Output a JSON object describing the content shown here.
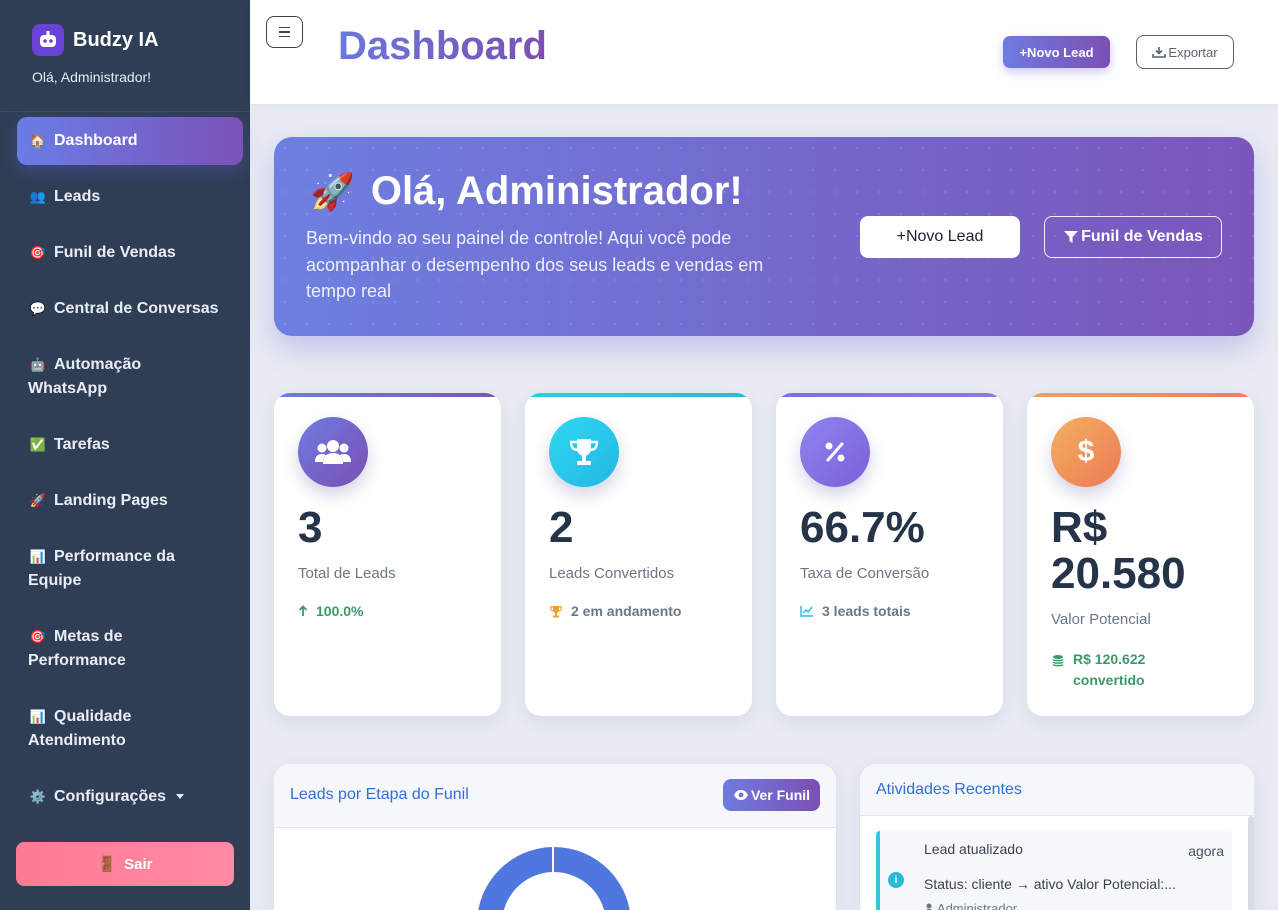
{
  "sidebar": {
    "brand": "Budzy IA",
    "greeting": "Olá, Administrador!",
    "items": [
      {
        "icon": "🏠",
        "label": "Dashboard",
        "active": true
      },
      {
        "icon": "👥",
        "label": "Leads"
      },
      {
        "icon": "🎯",
        "label": "Funil de Vendas"
      },
      {
        "icon": "💬",
        "label": "Central de Conversas"
      },
      {
        "icon": "🤖",
        "label": "Automação WhatsApp"
      },
      {
        "icon": "✅",
        "label": "Tarefas"
      },
      {
        "icon": "🚀",
        "label": "Landing Pages"
      },
      {
        "icon": "📊",
        "label": "Performance da Equipe"
      },
      {
        "icon": "🎯",
        "label": "Metas de Performance"
      },
      {
        "icon": "📊",
        "label": "Qualidade Atendimento"
      },
      {
        "icon": "⚙️",
        "label": "Configurações"
      }
    ],
    "logout": {
      "icon": "🚪",
      "label": "Sair"
    }
  },
  "header": {
    "title": "Dashboard",
    "new_lead": "+Novo Lead",
    "export": "Exportar"
  },
  "hero": {
    "emoji": "🚀",
    "title": "Olá, Administrador!",
    "text": "Bem-vindo ao seu painel de controle! Aqui você pode acompanhar o desempenho dos seus leads e vendas em tempo real",
    "btn_new": "+Novo Lead",
    "btn_funnel": "Funil de Vendas"
  },
  "stats": [
    {
      "value": "3",
      "label": "Total de Leads",
      "sub": "100.0%",
      "icon": "users-icon",
      "accent": "#6f62cf"
    },
    {
      "value": "2",
      "label": "Leads Convertidos",
      "sub": "2 em andamento",
      "icon": "trophy-icon",
      "accent": "#2bd0ea"
    },
    {
      "value": "66.7%",
      "label": "Taxa de Conversão",
      "sub": "3 leads totais",
      "icon": "percent-icon",
      "accent": "#8e78e8"
    },
    {
      "value": "R$ 20.580",
      "label": "Valor Potencial",
      "sub": "R$ 120.622 convertido",
      "icon": "dollar-icon",
      "accent": "#f2a05a"
    }
  ],
  "funnel_panel": {
    "title": "Leads por Etapa do Funil",
    "button": "Ver Funil"
  },
  "activity_panel": {
    "title": "Atividades Recentes",
    "items": [
      {
        "title": "Lead atualizado",
        "time": "agora",
        "desc": "Status: cliente → ativo Valor Potencial:...",
        "user": "Administrador"
      }
    ]
  },
  "colors": {
    "sidebar": "#2f3e55",
    "accent_start": "#6d7fe0",
    "accent_end": "#7a56bb",
    "success": "#3a9a6a",
    "logout": "#ff7a93"
  }
}
